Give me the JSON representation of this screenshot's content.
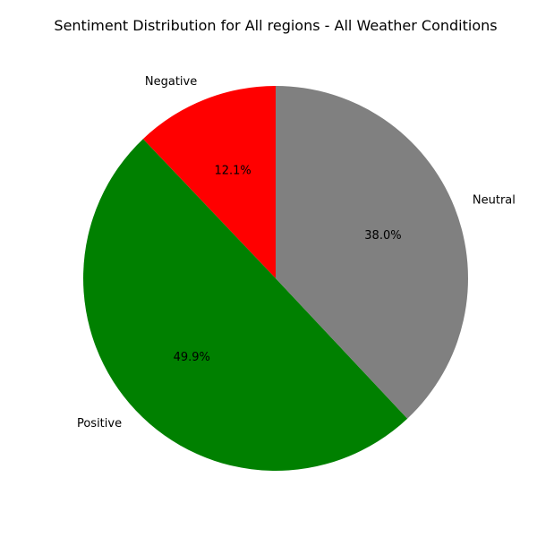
{
  "chart_data": {
    "type": "pie",
    "title": "Sentiment Distribution for All regions - All Weather Conditions",
    "start_angle_deg": 90,
    "direction": "counterclockwise",
    "slices": [
      {
        "label": "Negative",
        "value": 12.1,
        "pct_text": "12.1%",
        "color": "#ff0000"
      },
      {
        "label": "Positive",
        "value": 49.9,
        "pct_text": "49.9%",
        "color": "#008000"
      },
      {
        "label": "Neutral",
        "value": 38.0,
        "pct_text": "38.0%",
        "color": "#808080"
      }
    ]
  }
}
